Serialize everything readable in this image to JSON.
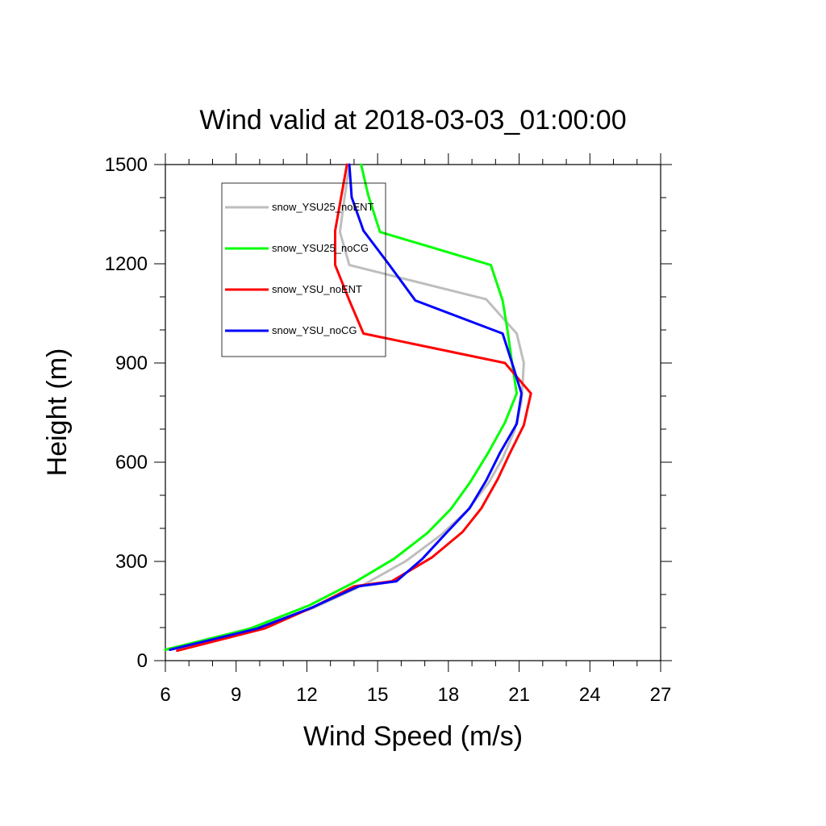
{
  "chart_data": {
    "type": "line",
    "title": "Wind valid at 2018-03-03_01:00:00",
    "xlabel": "Wind Speed (m/s)",
    "ylabel": "Height (m)",
    "xlim": [
      6,
      27
    ],
    "ylim": [
      0,
      1500
    ],
    "xticks": [
      6,
      9,
      12,
      15,
      18,
      21,
      24,
      27
    ],
    "yticks": [
      0,
      300,
      600,
      900,
      1200,
      1500
    ],
    "xticks_minor": [
      7,
      8,
      10,
      11,
      13,
      14,
      16,
      17,
      19,
      20,
      22,
      23,
      25,
      26
    ],
    "yticks_minor": [
      100,
      200,
      400,
      500,
      700,
      800,
      1000,
      1100,
      1300,
      1400
    ],
    "grid": false,
    "legend_position": "top-left",
    "series": [
      {
        "name": "snow_YSU25_noENT",
        "color": "#bebebe",
        "points": [
          [
            6.1,
            33
          ],
          [
            9.8,
            97
          ],
          [
            12.3,
            160
          ],
          [
            14.4,
            229
          ],
          [
            16.2,
            301
          ],
          [
            17.7,
            381
          ],
          [
            18.8,
            454
          ],
          [
            19.7,
            537
          ],
          [
            20.3,
            612
          ],
          [
            20.8,
            694
          ],
          [
            21.1,
            784
          ],
          [
            21.2,
            900
          ],
          [
            20.9,
            989
          ],
          [
            19.6,
            1093
          ],
          [
            13.8,
            1196
          ],
          [
            13.4,
            1296
          ],
          [
            13.6,
            1401
          ],
          [
            13.8,
            1500
          ]
        ]
      },
      {
        "name": "snow_YSU25_noCG",
        "color": "#00ff00",
        "points": [
          [
            6.0,
            33
          ],
          [
            9.6,
            97
          ],
          [
            12.1,
            167
          ],
          [
            14.1,
            240
          ],
          [
            15.7,
            308
          ],
          [
            17.1,
            385
          ],
          [
            18.1,
            458
          ],
          [
            18.9,
            537
          ],
          [
            19.7,
            630
          ],
          [
            20.4,
            720
          ],
          [
            20.9,
            808
          ],
          [
            20.7,
            900
          ],
          [
            20.5,
            1001
          ],
          [
            20.3,
            1089
          ],
          [
            19.8,
            1196
          ],
          [
            15.1,
            1296
          ],
          [
            14.6,
            1408
          ],
          [
            14.3,
            1500
          ]
        ]
      },
      {
        "name": "snow_YSU_noENT",
        "color": "#ff0000",
        "points": [
          [
            6.5,
            30
          ],
          [
            10.2,
            97
          ],
          [
            12.3,
            163
          ],
          [
            14.0,
            225
          ],
          [
            15.6,
            240
          ],
          [
            17.3,
            312
          ],
          [
            18.6,
            389
          ],
          [
            19.4,
            461
          ],
          [
            20.1,
            550
          ],
          [
            20.6,
            626
          ],
          [
            21.2,
            712
          ],
          [
            21.5,
            808
          ],
          [
            20.4,
            900
          ],
          [
            14.4,
            989
          ],
          [
            13.8,
            1089
          ],
          [
            13.2,
            1196
          ],
          [
            13.2,
            1300
          ],
          [
            13.7,
            1500
          ]
        ]
      },
      {
        "name": "snow_YSU_noCG",
        "color": "#0000ff",
        "points": [
          [
            6.2,
            33
          ],
          [
            9.9,
            97
          ],
          [
            12.2,
            160
          ],
          [
            14.2,
            225
          ],
          [
            15.8,
            240
          ],
          [
            16.9,
            308
          ],
          [
            17.9,
            385
          ],
          [
            18.9,
            461
          ],
          [
            19.6,
            544
          ],
          [
            20.2,
            630
          ],
          [
            20.9,
            716
          ],
          [
            21.1,
            808
          ],
          [
            20.7,
            900
          ],
          [
            20.3,
            989
          ],
          [
            16.6,
            1089
          ],
          [
            15.5,
            1196
          ],
          [
            14.4,
            1300
          ],
          [
            13.9,
            1401
          ],
          [
            13.8,
            1500
          ]
        ]
      }
    ]
  }
}
